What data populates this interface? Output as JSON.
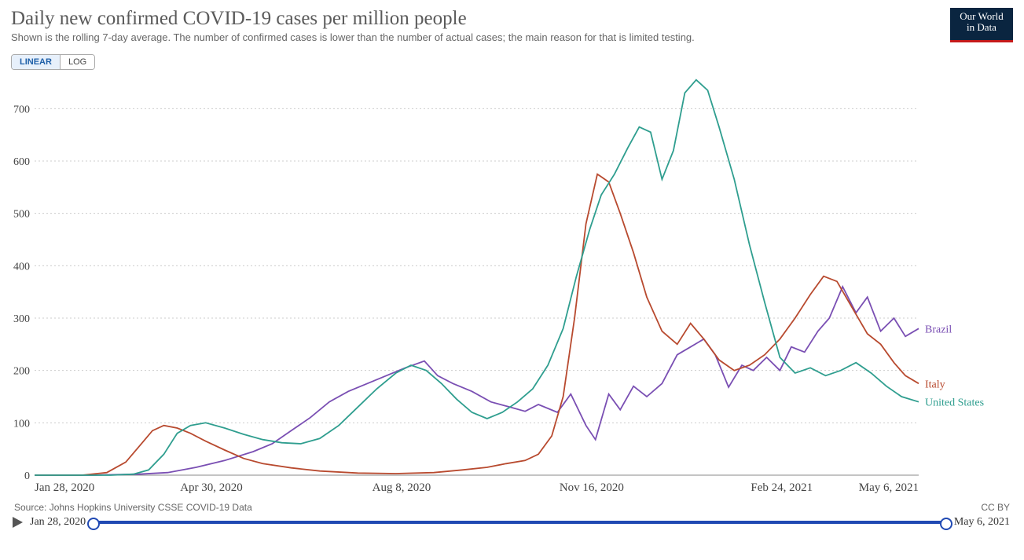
{
  "title": "Daily new confirmed COVID-19 cases per million people",
  "subtitle": "Shown is the rolling 7-day average. The number of confirmed cases is lower than the number of actual cases; the main reason for that is limited testing.",
  "logo_line1": "Our World",
  "logo_line2": "in Data",
  "scale": {
    "linear": "LINEAR",
    "log": "LOG",
    "active": "linear"
  },
  "source_label": "Source: Johns Hopkins University CSSE COVID-19 Data",
  "license": "CC BY",
  "timeline_start": "Jan 28, 2020",
  "timeline_end": "May 6, 2021",
  "chart": {
    "type": "line",
    "background_color": "#ffffff",
    "grid_color": "#cccccc",
    "axis_text_color": "#444444",
    "xlim": [
      0,
      465
    ],
    "ylim": [
      0,
      750
    ],
    "yticks": [
      0,
      100,
      200,
      300,
      400,
      500,
      600,
      700
    ],
    "xticks": [
      {
        "t": 0,
        "label": "Jan 28, 2020"
      },
      {
        "t": 93,
        "label": "Apr 30, 2020"
      },
      {
        "t": 193,
        "label": "Aug 8, 2020"
      },
      {
        "t": 293,
        "label": "Nov 16, 2020"
      },
      {
        "t": 393,
        "label": "Feb 24, 2021"
      },
      {
        "t": 465,
        "label": "May 6, 2021"
      }
    ],
    "line_width": 1.8,
    "label_fontsize": 15,
    "tick_fontsize": 14,
    "series": [
      {
        "name": "Brazil",
        "color": "#7a4fb3",
        "label": "Brazil",
        "data": [
          [
            0,
            0
          ],
          [
            30,
            0
          ],
          [
            55,
            2
          ],
          [
            70,
            5
          ],
          [
            85,
            15
          ],
          [
            100,
            28
          ],
          [
            115,
            45
          ],
          [
            125,
            60
          ],
          [
            135,
            85
          ],
          [
            145,
            110
          ],
          [
            155,
            140
          ],
          [
            165,
            160
          ],
          [
            175,
            175
          ],
          [
            185,
            190
          ],
          [
            195,
            205
          ],
          [
            205,
            218
          ],
          [
            212,
            190
          ],
          [
            220,
            175
          ],
          [
            230,
            160
          ],
          [
            240,
            140
          ],
          [
            250,
            130
          ],
          [
            258,
            122
          ],
          [
            265,
            135
          ],
          [
            275,
            120
          ],
          [
            282,
            155
          ],
          [
            290,
            95
          ],
          [
            295,
            68
          ],
          [
            302,
            155
          ],
          [
            308,
            125
          ],
          [
            315,
            170
          ],
          [
            322,
            150
          ],
          [
            330,
            175
          ],
          [
            338,
            230
          ],
          [
            345,
            245
          ],
          [
            352,
            260
          ],
          [
            358,
            230
          ],
          [
            365,
            168
          ],
          [
            372,
            210
          ],
          [
            378,
            200
          ],
          [
            385,
            225
          ],
          [
            392,
            200
          ],
          [
            398,
            245
          ],
          [
            405,
            235
          ],
          [
            412,
            275
          ],
          [
            418,
            300
          ],
          [
            425,
            360
          ],
          [
            432,
            310
          ],
          [
            438,
            340
          ],
          [
            445,
            275
          ],
          [
            452,
            300
          ],
          [
            458,
            265
          ],
          [
            465,
            280
          ]
        ]
      },
      {
        "name": "Italy",
        "color": "#b84a2f",
        "label": "Italy",
        "data": [
          [
            0,
            0
          ],
          [
            25,
            0
          ],
          [
            38,
            5
          ],
          [
            48,
            25
          ],
          [
            55,
            55
          ],
          [
            62,
            85
          ],
          [
            68,
            95
          ],
          [
            75,
            90
          ],
          [
            82,
            80
          ],
          [
            90,
            65
          ],
          [
            100,
            48
          ],
          [
            110,
            32
          ],
          [
            120,
            22
          ],
          [
            135,
            14
          ],
          [
            150,
            8
          ],
          [
            170,
            4
          ],
          [
            190,
            3
          ],
          [
            210,
            5
          ],
          [
            225,
            10
          ],
          [
            238,
            15
          ],
          [
            248,
            22
          ],
          [
            258,
            28
          ],
          [
            265,
            40
          ],
          [
            272,
            75
          ],
          [
            278,
            150
          ],
          [
            284,
            300
          ],
          [
            290,
            480
          ],
          [
            296,
            575
          ],
          [
            302,
            560
          ],
          [
            308,
            500
          ],
          [
            315,
            425
          ],
          [
            322,
            340
          ],
          [
            330,
            275
          ],
          [
            338,
            250
          ],
          [
            345,
            290
          ],
          [
            352,
            260
          ],
          [
            360,
            220
          ],
          [
            368,
            200
          ],
          [
            376,
            210
          ],
          [
            384,
            230
          ],
          [
            392,
            260
          ],
          [
            400,
            300
          ],
          [
            408,
            345
          ],
          [
            415,
            380
          ],
          [
            422,
            370
          ],
          [
            430,
            320
          ],
          [
            438,
            270
          ],
          [
            445,
            250
          ],
          [
            452,
            215
          ],
          [
            458,
            190
          ],
          [
            465,
            175
          ]
        ]
      },
      {
        "name": "United States",
        "color": "#2f9e8f",
        "label": "United States",
        "data": [
          [
            0,
            0
          ],
          [
            40,
            0
          ],
          [
            52,
            2
          ],
          [
            60,
            10
          ],
          [
            68,
            40
          ],
          [
            75,
            80
          ],
          [
            82,
            95
          ],
          [
            90,
            100
          ],
          [
            100,
            90
          ],
          [
            110,
            78
          ],
          [
            120,
            68
          ],
          [
            130,
            62
          ],
          [
            140,
            60
          ],
          [
            150,
            70
          ],
          [
            160,
            95
          ],
          [
            170,
            130
          ],
          [
            180,
            165
          ],
          [
            190,
            195
          ],
          [
            198,
            210
          ],
          [
            206,
            200
          ],
          [
            214,
            175
          ],
          [
            222,
            145
          ],
          [
            230,
            120
          ],
          [
            238,
            108
          ],
          [
            246,
            120
          ],
          [
            254,
            140
          ],
          [
            262,
            165
          ],
          [
            270,
            210
          ],
          [
            278,
            280
          ],
          [
            285,
            380
          ],
          [
            292,
            470
          ],
          [
            298,
            535
          ],
          [
            305,
            575
          ],
          [
            312,
            625
          ],
          [
            318,
            665
          ],
          [
            324,
            655
          ],
          [
            330,
            565
          ],
          [
            336,
            620
          ],
          [
            342,
            730
          ],
          [
            348,
            755
          ],
          [
            354,
            735
          ],
          [
            360,
            665
          ],
          [
            368,
            565
          ],
          [
            376,
            440
          ],
          [
            384,
            330
          ],
          [
            392,
            225
          ],
          [
            400,
            195
          ],
          [
            408,
            205
          ],
          [
            416,
            190
          ],
          [
            424,
            200
          ],
          [
            432,
            215
          ],
          [
            440,
            195
          ],
          [
            448,
            170
          ],
          [
            456,
            150
          ],
          [
            465,
            140
          ]
        ]
      }
    ]
  }
}
